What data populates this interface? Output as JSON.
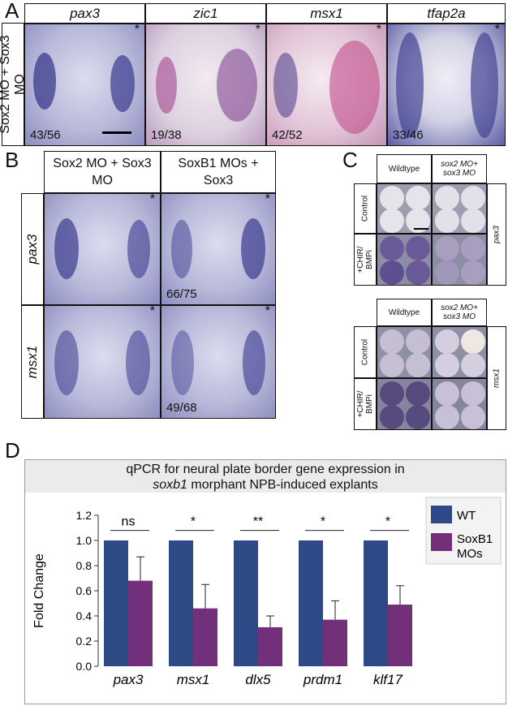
{
  "panel_a": {
    "label": "A",
    "row_label": "Sox2 MO + Sox3 MO",
    "columns": [
      {
        "gene": "pax3",
        "count": "43/56",
        "asterisk": "*"
      },
      {
        "gene": "zic1",
        "count": "19/38",
        "asterisk": "*"
      },
      {
        "gene": "msx1",
        "count": "42/52",
        "asterisk": "*"
      },
      {
        "gene": "tfap2a",
        "count": "33/46",
        "asterisk": "*"
      }
    ]
  },
  "panel_b": {
    "label": "B",
    "col_headers": [
      "Sox2 MO + Sox3 MO",
      "SoxB1 MOs + Sox3"
    ],
    "rows": [
      {
        "gene": "pax3",
        "cells": [
          {
            "asterisk": "*",
            "count": ""
          },
          {
            "asterisk": "*",
            "count": "66/75"
          }
        ]
      },
      {
        "gene": "msx1",
        "cells": [
          {
            "asterisk": "*",
            "count": ""
          },
          {
            "asterisk": "*",
            "count": "49/68"
          }
        ]
      }
    ]
  },
  "panel_c": {
    "label": "C",
    "blocks": [
      {
        "col_headers": [
          "Wildtype",
          "sox2 MO+ sox3 MO"
        ],
        "row_labels": [
          "Control",
          "+CHIR/ BMPi"
        ],
        "gene": "pax3"
      },
      {
        "col_headers": [
          "Wildtype",
          "sox2 MO+ sox3 MO"
        ],
        "row_labels": [
          "Control",
          "+CHIR/ BMPi"
        ],
        "gene": "msx1"
      }
    ]
  },
  "panel_d": {
    "label": "D",
    "title_line1": "qPCR for neural plate border gene expression in",
    "title_line2_italic": "soxb1",
    "title_line2_rest": " morphant NPB-induced explants"
  },
  "colors": {
    "wt": "#2e4a86",
    "soxb1": "#73307a",
    "stain": "#3a3a96"
  },
  "chart_data": {
    "type": "bar",
    "categories": [
      "pax3",
      "msx1",
      "dlx5",
      "prdm1",
      "klf17"
    ],
    "series": [
      {
        "name": "WT",
        "values": [
          1.0,
          1.0,
          1.0,
          1.0,
          1.0
        ]
      },
      {
        "name": "SoxB1 MOs",
        "values": [
          0.68,
          0.46,
          0.31,
          0.37,
          0.49
        ],
        "errors": [
          0.19,
          0.19,
          0.09,
          0.15,
          0.15
        ]
      }
    ],
    "significance": [
      "ns",
      "*",
      "**",
      "*",
      "*"
    ],
    "ylabel": "Fold Change",
    "ylim": [
      0,
      1.2
    ],
    "yticks": [
      "0.0",
      "0.2",
      "0.4",
      "0.6",
      "0.8",
      "1.0",
      "1.2"
    ],
    "legend": [
      "WT",
      "SoxB1 MOs"
    ],
    "legend_position": "top-right"
  }
}
